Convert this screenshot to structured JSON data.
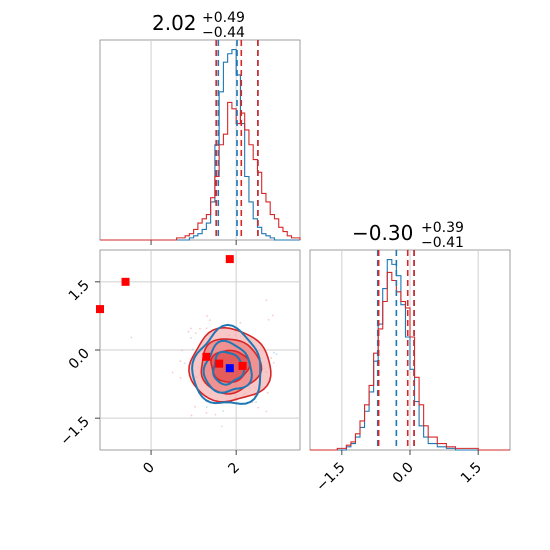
{
  "chart_data": [
    {
      "type": "histogram",
      "panel": "marginal-x",
      "title": {
        "value": "2.02",
        "plus": "+0.49",
        "minus": "−0.44"
      },
      "xlim": [
        -1.2,
        3.5
      ],
      "grid": true,
      "quantiles": {
        "blue": [
          1.58,
          2.02,
          2.51
        ],
        "red": [
          1.53,
          2.12,
          2.51
        ]
      },
      "colors": {
        "blue": "#1f77b4",
        "red": "#d62728"
      },
      "series": [
        {
          "x": [
            -1.2,
            -0.8,
            -0.4,
            0.0,
            0.4,
            0.6,
            0.8,
            0.9,
            1.0,
            1.1,
            1.2,
            1.3,
            1.4,
            1.5,
            1.6,
            1.7,
            1.8,
            1.9,
            2.0,
            2.1,
            2.2,
            2.3,
            2.4,
            2.5,
            2.6,
            2.7,
            2.8,
            2.9,
            3.0,
            3.1,
            3.2,
            3.3,
            3.5
          ],
          "y": [
            0,
            0,
            0,
            0,
            0,
            0,
            0,
            1,
            2,
            3,
            5,
            8,
            18,
            45,
            70,
            84,
            88,
            90,
            78,
            55,
            30,
            18,
            10,
            6,
            3,
            2,
            1,
            0,
            0,
            0,
            0,
            0,
            0
          ]
        },
        {
          "x": [
            -1.2,
            -0.8,
            -0.4,
            0.0,
            0.4,
            0.6,
            0.8,
            0.9,
            1.0,
            1.1,
            1.2,
            1.3,
            1.4,
            1.5,
            1.6,
            1.7,
            1.8,
            1.9,
            2.0,
            2.1,
            2.2,
            2.3,
            2.4,
            2.5,
            2.6,
            2.7,
            2.8,
            2.9,
            3.0,
            3.1,
            3.2,
            3.3,
            3.5
          ],
          "y": [
            0,
            0,
            0,
            0,
            0,
            1,
            2,
            3,
            5,
            8,
            10,
            12,
            20,
            30,
            45,
            50,
            65,
            62,
            55,
            60,
            52,
            45,
            38,
            32,
            22,
            18,
            12,
            10,
            6,
            4,
            2,
            1,
            0
          ]
        }
      ]
    },
    {
      "type": "contour",
      "panel": "joint",
      "xlim": [
        -1.2,
        3.5
      ],
      "ylim": [
        -2.2,
        2.2
      ],
      "grid": true,
      "markers": [
        {
          "color": "red",
          "x": -1.2,
          "y": 0.9
        },
        {
          "color": "red",
          "x": -0.6,
          "y": 1.5
        },
        {
          "color": "red",
          "x": 1.85,
          "y": 2.0
        },
        {
          "color": "red",
          "x": 1.3,
          "y": -0.15
        },
        {
          "color": "red",
          "x": 1.6,
          "y": -0.3
        },
        {
          "color": "red",
          "x": 2.15,
          "y": -0.35
        },
        {
          "color": "blue",
          "x": 1.85,
          "y": -0.4
        }
      ],
      "contours": {
        "red": {
          "center": [
            1.85,
            -0.35
          ],
          "radii": [
            [
              0.45,
              0.35
            ],
            [
              0.7,
              0.6
            ],
            [
              0.95,
              0.8
            ]
          ]
        },
        "blue": {
          "center": [
            1.8,
            -0.4
          ],
          "radii": [
            [
              0.35,
              0.35
            ],
            [
              0.55,
              0.55
            ],
            [
              0.8,
              0.85
            ]
          ]
        }
      }
    },
    {
      "type": "histogram",
      "panel": "marginal-y",
      "title": {
        "value": "−0.30",
        "plus": "+0.39",
        "minus": "−0.41"
      },
      "xlim": [
        -2.2,
        2.2
      ],
      "grid": true,
      "quantiles": {
        "blue": [
          -0.71,
          -0.3,
          0.09
        ],
        "red": [
          -0.69,
          -0.05,
          0.09
        ]
      },
      "series": [
        {
          "x": [
            -2.2,
            -2.0,
            -1.8,
            -1.6,
            -1.4,
            -1.3,
            -1.2,
            -1.1,
            -1.0,
            -0.9,
            -0.8,
            -0.7,
            -0.6,
            -0.5,
            -0.4,
            -0.3,
            -0.2,
            -0.1,
            0.0,
            0.1,
            0.2,
            0.3,
            0.4,
            0.6,
            0.8,
            1.0,
            1.5,
            2.2
          ],
          "y": [
            0,
            0,
            0,
            0,
            2,
            4,
            8,
            14,
            24,
            36,
            55,
            78,
            100,
            118,
            115,
            108,
            90,
            70,
            50,
            30,
            15,
            8,
            4,
            2,
            1,
            0,
            0,
            0
          ]
        },
        {
          "x": [
            -2.2,
            -2.0,
            -1.8,
            -1.6,
            -1.4,
            -1.3,
            -1.2,
            -1.1,
            -1.0,
            -0.9,
            -0.8,
            -0.7,
            -0.6,
            -0.5,
            -0.4,
            -0.3,
            -0.2,
            -0.1,
            0.0,
            0.1,
            0.2,
            0.3,
            0.4,
            0.6,
            0.8,
            1.0,
            1.5,
            2.2
          ],
          "y": [
            0,
            0,
            0,
            1,
            3,
            5,
            10,
            18,
            28,
            40,
            60,
            75,
            92,
            110,
            105,
            98,
            92,
            88,
            70,
            45,
            28,
            15,
            8,
            4,
            2,
            1,
            0,
            0
          ]
        }
      ]
    }
  ],
  "ticks": {
    "joint_x": [
      "0",
      "2"
    ],
    "joint_y": [
      "1.5",
      "0.0",
      "−1.5"
    ],
    "marginal_y_x": [
      "−1.5",
      "0.0",
      "1.5"
    ]
  }
}
